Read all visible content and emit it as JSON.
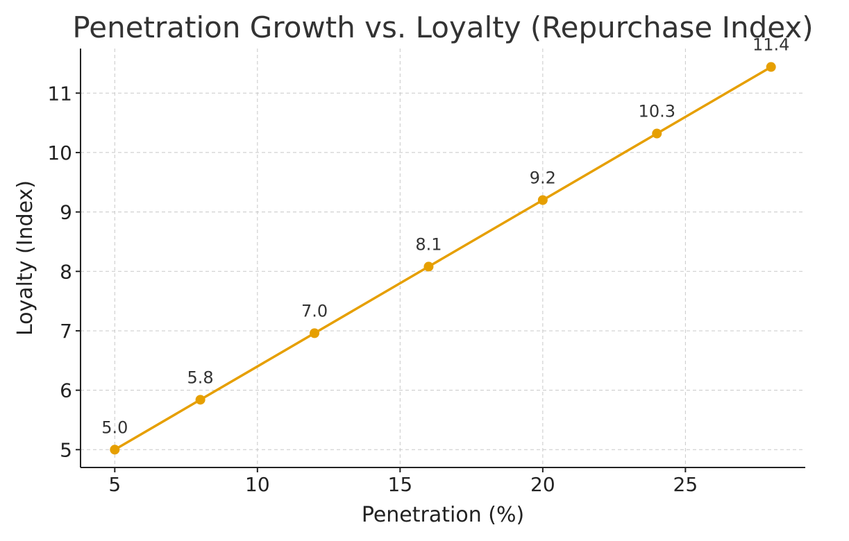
{
  "chart_data": {
    "type": "line",
    "title": "Penetration Growth vs. Loyalty (Repurchase Index)",
    "xlabel": "Penetration (%)",
    "ylabel": "Loyalty (Index)",
    "xlim": [
      3.8,
      29.2
    ],
    "ylim": [
      4.7,
      11.75
    ],
    "xticks": [
      5,
      10,
      15,
      20,
      25
    ],
    "yticks": [
      5,
      6,
      7,
      8,
      9,
      10,
      11
    ],
    "grid": true,
    "series": [
      {
        "name": "Loyalty",
        "color": "#E69F00",
        "x": [
          5,
          8,
          12,
          16,
          20,
          24,
          28
        ],
        "y": [
          5.0,
          5.84,
          6.96,
          8.08,
          9.2,
          10.32,
          11.44
        ],
        "labels": [
          "5.0",
          "5.8",
          "7.0",
          "8.1",
          "9.2",
          "10.3",
          "11.4"
        ]
      }
    ]
  }
}
